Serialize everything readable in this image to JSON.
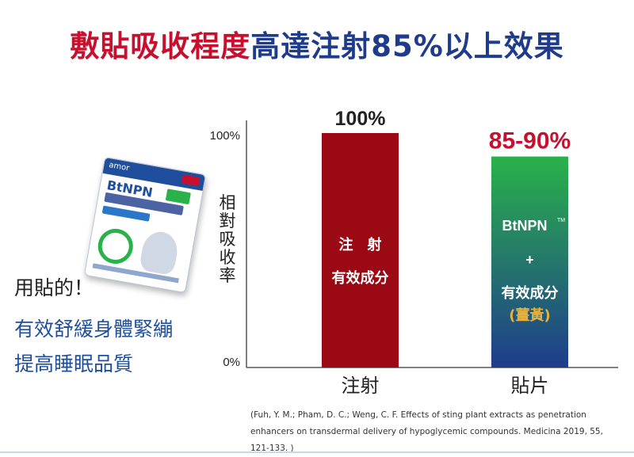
{
  "headline": {
    "part1": "敷貼吸收程度",
    "part2": "高達注射85%以上效果",
    "colors": {
      "part1": "#c8102e",
      "part2": "#1f3c8c"
    }
  },
  "left_text": {
    "line1": "用貼的！",
    "line2": "有效舒緩身體緊繃",
    "line3": "提高睡眠品質"
  },
  "product": {
    "brand": "amor",
    "name": "BtNPN"
  },
  "chart_data": {
    "type": "bar",
    "title": "",
    "ylabel": "相對吸收率",
    "ylim": [
      0,
      100
    ],
    "y_ticks": [
      "100%",
      "0%"
    ],
    "grid": false,
    "categories": [
      "注射",
      "貼片"
    ],
    "values": [
      100,
      90
    ],
    "value_labels": [
      "100%",
      "85-90%"
    ],
    "bar_texts": [
      {
        "line1": "注　射",
        "line2": "有效成分"
      },
      {
        "line1": "BtNPN",
        "tm": "TM",
        "line2": "+",
        "line3": "有效成分",
        "line4": "(薑黃)"
      }
    ],
    "colors": {
      "injection": "#9b0a14",
      "patch_top": "#2ab24a",
      "patch_bottom": "#1f3c8c",
      "value_label_patch": "#c8102e",
      "turmeric_text": "#e8b23a"
    }
  },
  "citation": "(Fuh, Y. M.; Pham, D. C.; Weng, C. F. Effects of sting plant extracts as penetration enhancers on transdermal delivery of  hypoglycemic compounds. Medicina 2019, 55, 121-133. )"
}
